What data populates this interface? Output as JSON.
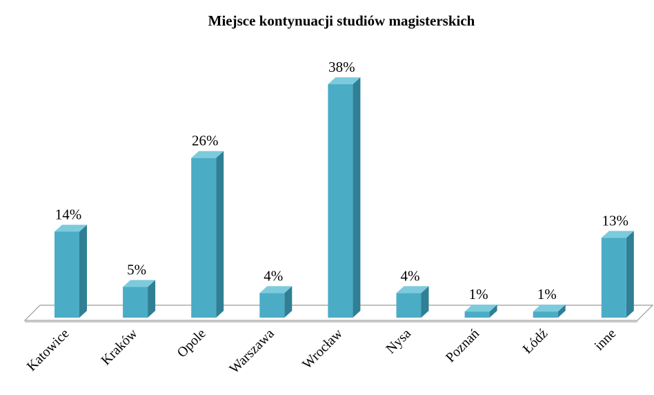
{
  "chart_data": {
    "type": "bar3d",
    "title": "Miejsce kontynuacji studiów magisterskich",
    "categories": [
      "Katowice",
      "Kraków",
      "Opole",
      "Warszawa",
      "Wrocław",
      "Nysa",
      "Poznań",
      "Łódź",
      "inne"
    ],
    "values": [
      14,
      5,
      26,
      4,
      38,
      4,
      1,
      1,
      13
    ],
    "value_labels": [
      "14%",
      "5%",
      "26%",
      "4%",
      "38%",
      "4%",
      "1%",
      "1%",
      "13%"
    ],
    "color": "#4bacc6"
  }
}
